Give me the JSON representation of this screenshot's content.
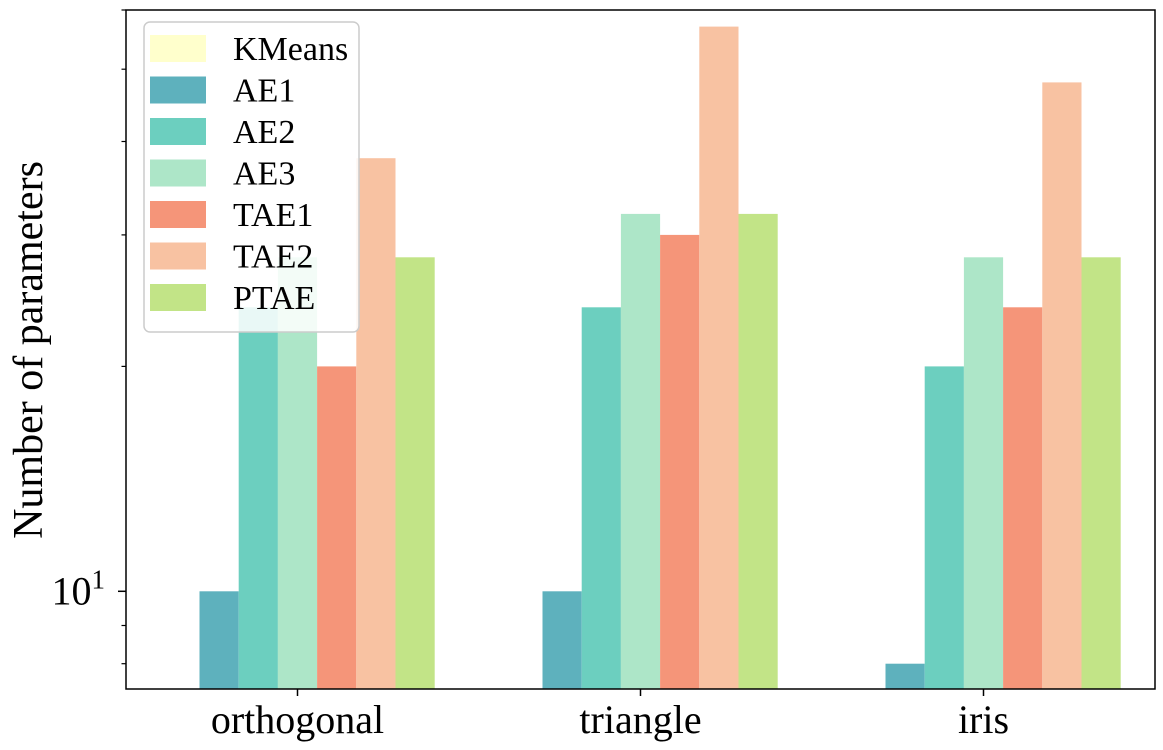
{
  "chart_data": {
    "type": "bar",
    "title": "",
    "xlabel": "",
    "ylabel": "Number of parameters",
    "yscale": "log",
    "ylim": [
      7.4,
      60
    ],
    "major_tick_label": {
      "base": "10",
      "exponent": "1"
    },
    "categories": [
      "orthogonal",
      "triangle",
      "iris"
    ],
    "series": [
      {
        "name": "KMeans",
        "color": "#ffffcc",
        "values": [
          0,
          0,
          0
        ]
      },
      {
        "name": "AE1",
        "color": "#5eb1bd",
        "values": [
          10,
          10,
          8
        ]
      },
      {
        "name": "AE2",
        "color": "#6ccfbf",
        "values": [
          24,
          24,
          20
        ]
      },
      {
        "name": "AE3",
        "color": "#ade6c8",
        "values": [
          28,
          32,
          28
        ]
      },
      {
        "name": "TAE1",
        "color": "#f59579",
        "values": [
          20,
          30,
          24
        ]
      },
      {
        "name": "TAE2",
        "color": "#f8c2a2",
        "values": [
          38,
          57,
          48
        ]
      },
      {
        "name": "PTAE",
        "color": "#c2e487",
        "values": [
          28,
          32,
          28
        ]
      }
    ],
    "legend_position": "top-left",
    "grid": false
  }
}
